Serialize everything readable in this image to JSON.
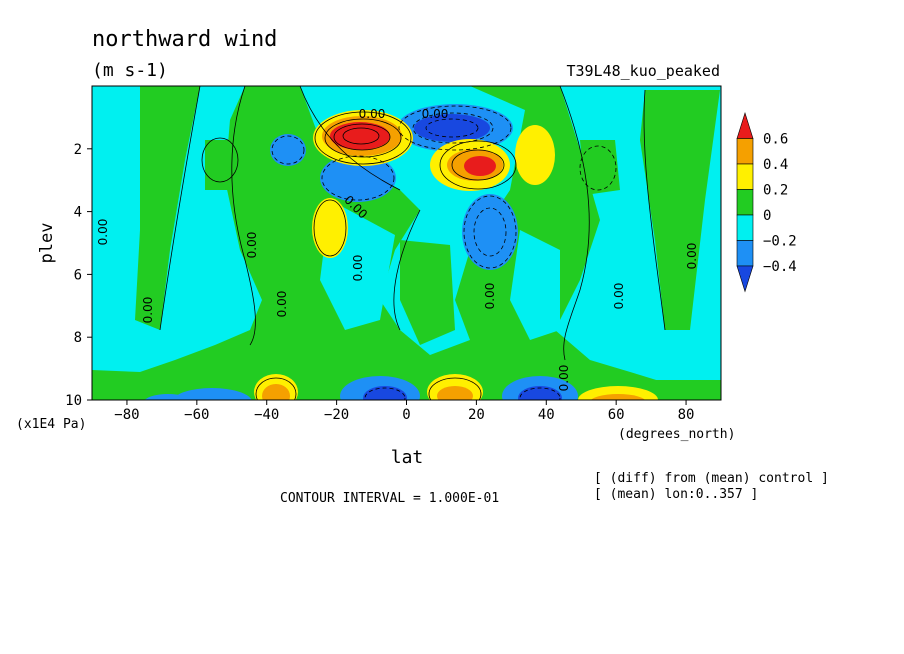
{
  "chart_data": {
    "type": "heatmap",
    "title": "northward wind",
    "units": "(m s-1)",
    "run_label": "T39L48_kuo_peaked",
    "xlabel": "lat",
    "xunit": "(degrees_north)",
    "ylabel": "plev",
    "yunit": "(x1E4 Pa)",
    "xlim": [
      -90,
      90
    ],
    "ylim": [
      10,
      0
    ],
    "x_ticks": [
      -80,
      -60,
      -40,
      -20,
      0,
      20,
      40,
      60,
      80
    ],
    "y_ticks": [
      2,
      4,
      6,
      8,
      10
    ],
    "contour_interval_text": "CONTOUR INTERVAL = 1.000E-01",
    "notes": [
      "[ (diff) from (mean) control ]",
      "[ (mean) lon:0..357 ]"
    ],
    "colorbar": {
      "labels": [
        "0.6",
        "0.4",
        "0.2",
        "0",
        "-0.2",
        "-0.4"
      ],
      "colors": [
        "#e81c1c",
        "#f5a000",
        "#fff000",
        "#22cc22",
        "#00f0f0",
        "#1e90f5",
        "#1848e0"
      ]
    },
    "contour_labels": [
      "0.00",
      "0.00",
      "0.00",
      "0.00",
      "0.00",
      "0.00",
      "0.00",
      "0.00",
      "0.00",
      "0.00",
      "0.00",
      "0.00"
    ],
    "features": [
      {
        "lat": -12,
        "plev": 1.8,
        "value": 0.6
      },
      {
        "lat": 20,
        "plev": 2.6,
        "value": 0.5
      },
      {
        "lat": 8,
        "plev": 1.5,
        "value": -0.5
      },
      {
        "lat": -6,
        "plev": 2.8,
        "value": -0.3
      },
      {
        "lat": 25,
        "plev": 4.6,
        "value": -0.3
      },
      {
        "lat": -24,
        "plev": 4.6,
        "value": 0.3
      },
      {
        "lat": -38,
        "plev": 2.5,
        "value": -0.2
      },
      {
        "lat": -35,
        "plev": 9.7,
        "value": 0.5
      },
      {
        "lat": 16,
        "plev": 9.7,
        "value": 0.4
      },
      {
        "lat": -8,
        "plev": 9.7,
        "value": -0.4
      },
      {
        "lat": 36,
        "plev": 9.7,
        "value": -0.4
      },
      {
        "lat": 62,
        "plev": 9.8,
        "value": 0.3
      },
      {
        "lat": -58,
        "plev": 9.8,
        "value": -0.2
      },
      {
        "lat": 56,
        "plev": 2.6,
        "value": -0.1
      },
      {
        "lat": -52,
        "plev": 2.6,
        "value": -0.1
      }
    ]
  }
}
